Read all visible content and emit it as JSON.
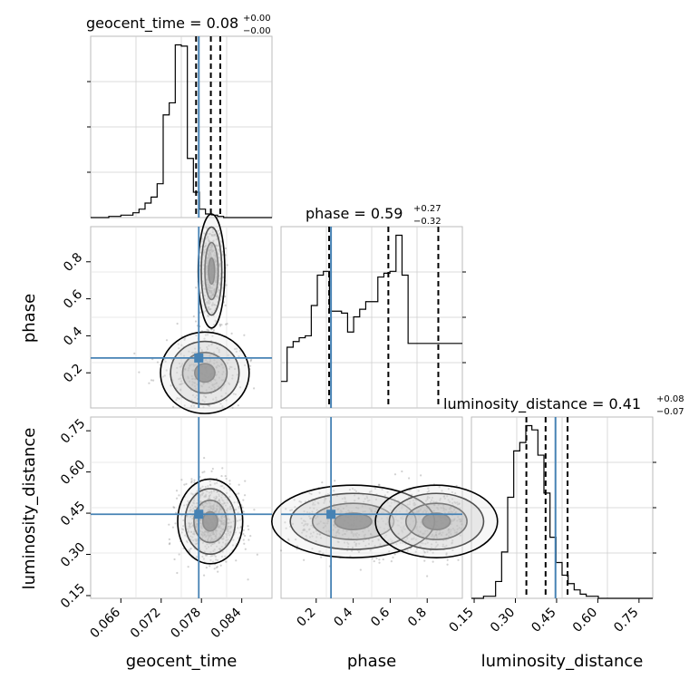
{
  "chart_data": {
    "type": "corner",
    "parameters": [
      "geocent_time",
      "phase",
      "luminosity_distance"
    ],
    "truth_color": "#4682b4",
    "truths": {
      "geocent_time": 0.0776,
      "phase": 0.28,
      "luminosity_distance": 0.446
    },
    "ranges": {
      "geocent_time": [
        0.0615,
        0.0885
      ],
      "phase": [
        0.01,
        0.99
      ],
      "luminosity_distance": [
        0.14,
        0.8
      ]
    },
    "titles": {
      "geocent_time": {
        "prefix": "geocent_time = 0.08",
        "plus": "+0.00",
        "minus": "−0.00"
      },
      "phase": {
        "prefix": "phase = 0.59",
        "plus": "+0.27",
        "minus": "−0.32"
      },
      "luminosity_distance": {
        "prefix": "luminosity_distance = 0.41",
        "plus": "+0.08",
        "minus": "−0.07"
      }
    },
    "quantiles": {
      "geocent_time": [
        0.0772,
        0.0794,
        0.0808
      ],
      "phase": [
        0.27,
        0.59,
        0.86
      ],
      "luminosity_distance": [
        0.34,
        0.41,
        0.49
      ]
    },
    "axis_labels": {
      "x": [
        "geocent_time",
        "phase",
        "luminosity_distance"
      ],
      "y": [
        "phase",
        "luminosity_distance"
      ]
    },
    "ticks": {
      "geocent_time": [
        "0.066",
        "0.072",
        "0.078",
        "0.084"
      ],
      "phase": [
        "0.2",
        "0.4",
        "0.6",
        "0.8"
      ],
      "luminosity_distance": [
        "0.15",
        "0.30",
        "0.45",
        "0.60",
        "0.75"
      ]
    },
    "hist_geocent_time": {
      "edges_start": 0.0615,
      "bin_width": 0.0009,
      "counts": [
        0,
        0,
        0,
        1,
        1,
        2,
        2,
        4,
        7,
        12,
        17,
        28,
        85,
        95,
        143,
        142,
        49,
        21,
        7,
        3,
        2,
        1,
        0,
        0,
        0,
        0,
        0,
        0,
        0,
        0
      ]
    },
    "hist_phase": {
      "edges_start": 0.01,
      "bin_width": 0.0327,
      "counts": [
        14,
        32,
        35,
        37,
        38,
        54,
        70,
        72,
        51,
        51,
        50,
        40,
        48,
        52,
        56,
        56,
        69,
        71,
        72,
        91,
        70,
        34,
        34,
        34,
        34,
        34,
        34,
        34,
        34,
        34
      ]
    },
    "hist_luminosity_distance": {
      "edges_start": 0.14,
      "bin_width": 0.022,
      "counts": [
        0,
        0,
        1,
        1,
        8,
        22,
        48,
        70,
        74,
        82,
        80,
        68,
        50,
        29,
        17,
        11,
        7,
        4,
        2,
        1,
        1,
        0,
        0,
        0,
        0,
        0,
        0,
        0,
        0,
        0
      ]
    },
    "scatter_count": 900,
    "grid": true
  }
}
